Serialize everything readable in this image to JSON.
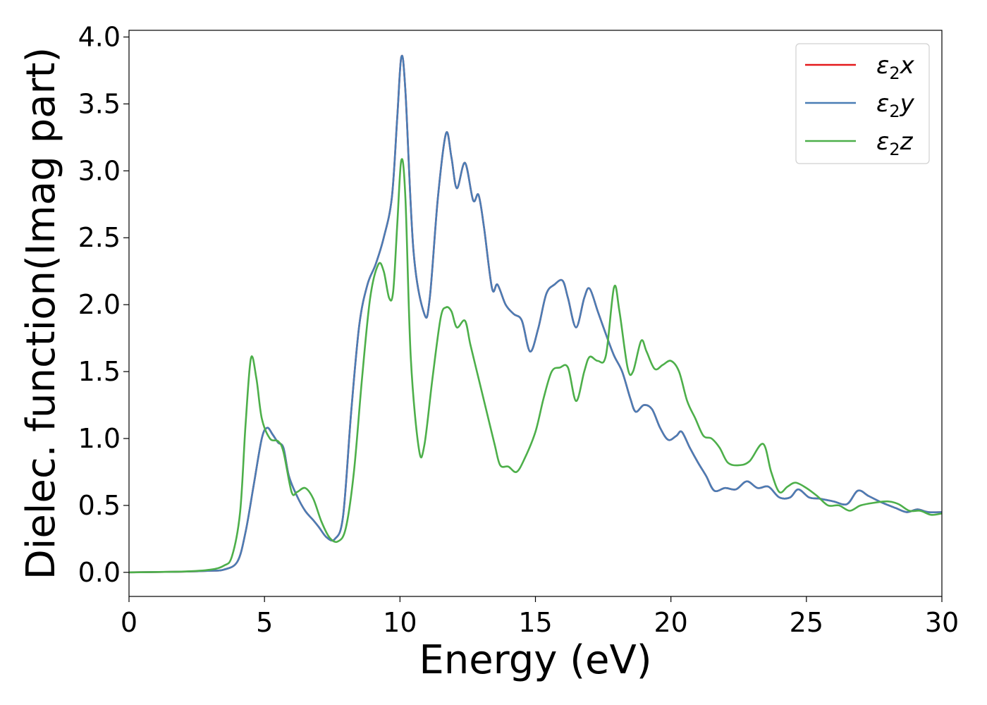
{
  "chart_data": {
    "type": "line",
    "title": "",
    "xlabel": "Energy (eV)",
    "ylabel": "Dielec. function(Imag part)",
    "xlim": [
      0,
      30
    ],
    "ylim": [
      -0.18,
      4.05
    ],
    "xticks": [
      0,
      5,
      10,
      15,
      20,
      25,
      30
    ],
    "xtick_labels": [
      "0",
      "5",
      "10",
      "15",
      "20",
      "25",
      "30"
    ],
    "yticks": [
      0.0,
      0.5,
      1.0,
      1.5,
      2.0,
      2.5,
      3.0,
      3.5,
      4.0
    ],
    "ytick_labels": [
      "0.0",
      "0.5",
      "1.0",
      "1.5",
      "2.0",
      "2.5",
      "3.0",
      "3.5",
      "4.0"
    ],
    "grid": false,
    "legend_position": "top-right",
    "series": [
      {
        "name": "ε2x",
        "legend": {
          "base": "ε",
          "sub": "2",
          "var": "x"
        },
        "color": "#e41a1c",
        "points": [
          [
            0,
            0
          ],
          [
            2,
            0.005
          ],
          [
            3,
            0.012
          ],
          [
            3.5,
            0.02
          ],
          [
            4,
            0.08
          ],
          [
            4.3,
            0.3
          ],
          [
            4.6,
            0.65
          ],
          [
            4.9,
            1.0
          ],
          [
            5.1,
            1.08
          ],
          [
            5.3,
            1.03
          ],
          [
            5.5,
            0.97
          ],
          [
            5.7,
            0.93
          ],
          [
            5.9,
            0.72
          ],
          [
            6.2,
            0.57
          ],
          [
            6.5,
            0.46
          ],
          [
            6.8,
            0.39
          ],
          [
            7.0,
            0.34
          ],
          [
            7.3,
            0.26
          ],
          [
            7.6,
            0.25
          ],
          [
            7.9,
            0.42
          ],
          [
            8.2,
            1.2
          ],
          [
            8.5,
            1.85
          ],
          [
            8.8,
            2.15
          ],
          [
            9.1,
            2.3
          ],
          [
            9.4,
            2.5
          ],
          [
            9.7,
            2.8
          ],
          [
            9.9,
            3.4
          ],
          [
            10.05,
            3.85
          ],
          [
            10.2,
            3.6
          ],
          [
            10.5,
            2.4
          ],
          [
            10.9,
            1.93
          ],
          [
            11.1,
            2.05
          ],
          [
            11.4,
            2.8
          ],
          [
            11.7,
            3.28
          ],
          [
            11.9,
            3.1
          ],
          [
            12.1,
            2.87
          ],
          [
            12.4,
            3.06
          ],
          [
            12.7,
            2.78
          ],
          [
            12.9,
            2.82
          ],
          [
            13.1,
            2.58
          ],
          [
            13.4,
            2.12
          ],
          [
            13.6,
            2.15
          ],
          [
            13.9,
            2.0
          ],
          [
            14.2,
            1.93
          ],
          [
            14.5,
            1.88
          ],
          [
            14.8,
            1.65
          ],
          [
            15.1,
            1.82
          ],
          [
            15.4,
            2.08
          ],
          [
            15.7,
            2.15
          ],
          [
            16.0,
            2.18
          ],
          [
            16.2,
            2.05
          ],
          [
            16.5,
            1.83
          ],
          [
            16.8,
            2.05
          ],
          [
            17.0,
            2.12
          ],
          [
            17.3,
            1.95
          ],
          [
            17.6,
            1.78
          ],
          [
            17.9,
            1.62
          ],
          [
            18.2,
            1.5
          ],
          [
            18.5,
            1.3
          ],
          [
            18.7,
            1.2
          ],
          [
            19.0,
            1.25
          ],
          [
            19.3,
            1.22
          ],
          [
            19.6,
            1.08
          ],
          [
            19.9,
            0.99
          ],
          [
            20.2,
            1.02
          ],
          [
            20.4,
            1.05
          ],
          [
            20.7,
            0.93
          ],
          [
            21.0,
            0.82
          ],
          [
            21.3,
            0.72
          ],
          [
            21.6,
            0.61
          ],
          [
            22.0,
            0.63
          ],
          [
            22.4,
            0.62
          ],
          [
            22.8,
            0.68
          ],
          [
            23.2,
            0.63
          ],
          [
            23.6,
            0.64
          ],
          [
            24.0,
            0.56
          ],
          [
            24.4,
            0.56
          ],
          [
            24.7,
            0.62
          ],
          [
            25.1,
            0.56
          ],
          [
            25.5,
            0.55
          ],
          [
            26.0,
            0.53
          ],
          [
            26.5,
            0.51
          ],
          [
            26.9,
            0.61
          ],
          [
            27.3,
            0.57
          ],
          [
            27.8,
            0.52
          ],
          [
            28.3,
            0.48
          ],
          [
            28.7,
            0.45
          ],
          [
            29.1,
            0.47
          ],
          [
            29.5,
            0.45
          ],
          [
            30,
            0.45
          ]
        ]
      },
      {
        "name": "ε2y",
        "legend": {
          "base": "ε",
          "sub": "2",
          "var": "y"
        },
        "color": "#4a7db5",
        "points": [
          [
            0,
            0
          ],
          [
            2,
            0.005
          ],
          [
            3,
            0.012
          ],
          [
            3.5,
            0.02
          ],
          [
            4,
            0.08
          ],
          [
            4.3,
            0.3
          ],
          [
            4.6,
            0.65
          ],
          [
            4.9,
            1.0
          ],
          [
            5.1,
            1.08
          ],
          [
            5.3,
            1.03
          ],
          [
            5.5,
            0.97
          ],
          [
            5.7,
            0.93
          ],
          [
            5.9,
            0.72
          ],
          [
            6.2,
            0.57
          ],
          [
            6.5,
            0.46
          ],
          [
            6.8,
            0.39
          ],
          [
            7.0,
            0.34
          ],
          [
            7.3,
            0.26
          ],
          [
            7.6,
            0.25
          ],
          [
            7.9,
            0.42
          ],
          [
            8.2,
            1.2
          ],
          [
            8.5,
            1.85
          ],
          [
            8.8,
            2.15
          ],
          [
            9.1,
            2.3
          ],
          [
            9.4,
            2.5
          ],
          [
            9.7,
            2.8
          ],
          [
            9.9,
            3.4
          ],
          [
            10.05,
            3.85
          ],
          [
            10.2,
            3.6
          ],
          [
            10.5,
            2.4
          ],
          [
            10.9,
            1.93
          ],
          [
            11.1,
            2.05
          ],
          [
            11.4,
            2.8
          ],
          [
            11.7,
            3.28
          ],
          [
            11.9,
            3.1
          ],
          [
            12.1,
            2.87
          ],
          [
            12.4,
            3.06
          ],
          [
            12.7,
            2.78
          ],
          [
            12.9,
            2.82
          ],
          [
            13.1,
            2.58
          ],
          [
            13.4,
            2.12
          ],
          [
            13.6,
            2.15
          ],
          [
            13.9,
            2.0
          ],
          [
            14.2,
            1.93
          ],
          [
            14.5,
            1.88
          ],
          [
            14.8,
            1.65
          ],
          [
            15.1,
            1.82
          ],
          [
            15.4,
            2.08
          ],
          [
            15.7,
            2.15
          ],
          [
            16.0,
            2.18
          ],
          [
            16.2,
            2.05
          ],
          [
            16.5,
            1.83
          ],
          [
            16.8,
            2.05
          ],
          [
            17.0,
            2.12
          ],
          [
            17.3,
            1.95
          ],
          [
            17.6,
            1.78
          ],
          [
            17.9,
            1.62
          ],
          [
            18.2,
            1.5
          ],
          [
            18.5,
            1.3
          ],
          [
            18.7,
            1.2
          ],
          [
            19.0,
            1.25
          ],
          [
            19.3,
            1.22
          ],
          [
            19.6,
            1.08
          ],
          [
            19.9,
            0.99
          ],
          [
            20.2,
            1.02
          ],
          [
            20.4,
            1.05
          ],
          [
            20.7,
            0.93
          ],
          [
            21.0,
            0.82
          ],
          [
            21.3,
            0.72
          ],
          [
            21.6,
            0.61
          ],
          [
            22.0,
            0.63
          ],
          [
            22.4,
            0.62
          ],
          [
            22.8,
            0.68
          ],
          [
            23.2,
            0.63
          ],
          [
            23.6,
            0.64
          ],
          [
            24.0,
            0.56
          ],
          [
            24.4,
            0.56
          ],
          [
            24.7,
            0.62
          ],
          [
            25.1,
            0.56
          ],
          [
            25.5,
            0.55
          ],
          [
            26.0,
            0.53
          ],
          [
            26.5,
            0.51
          ],
          [
            26.9,
            0.61
          ],
          [
            27.3,
            0.57
          ],
          [
            27.8,
            0.52
          ],
          [
            28.3,
            0.48
          ],
          [
            28.7,
            0.45
          ],
          [
            29.1,
            0.47
          ],
          [
            29.5,
            0.45
          ],
          [
            30,
            0.45
          ]
        ]
      },
      {
        "name": "ε2z",
        "legend": {
          "base": "ε",
          "sub": "2",
          "var": "z"
        },
        "color": "#4daf4a",
        "points": [
          [
            0,
            0
          ],
          [
            2,
            0.006
          ],
          [
            3,
            0.02
          ],
          [
            3.5,
            0.05
          ],
          [
            3.8,
            0.12
          ],
          [
            4.1,
            0.45
          ],
          [
            4.3,
            1.1
          ],
          [
            4.5,
            1.6
          ],
          [
            4.7,
            1.45
          ],
          [
            4.9,
            1.15
          ],
          [
            5.2,
            1.0
          ],
          [
            5.5,
            0.98
          ],
          [
            5.7,
            0.9
          ],
          [
            6.0,
            0.6
          ],
          [
            6.2,
            0.6
          ],
          [
            6.5,
            0.63
          ],
          [
            6.8,
            0.55
          ],
          [
            7.1,
            0.38
          ],
          [
            7.4,
            0.26
          ],
          [
            7.7,
            0.23
          ],
          [
            8.0,
            0.33
          ],
          [
            8.3,
            0.75
          ],
          [
            8.6,
            1.45
          ],
          [
            8.9,
            2.05
          ],
          [
            9.2,
            2.3
          ],
          [
            9.4,
            2.25
          ],
          [
            9.6,
            2.05
          ],
          [
            9.75,
            2.1
          ],
          [
            9.9,
            2.6
          ],
          [
            10.05,
            3.08
          ],
          [
            10.2,
            2.8
          ],
          [
            10.4,
            1.6
          ],
          [
            10.7,
            0.92
          ],
          [
            10.9,
            0.95
          ],
          [
            11.2,
            1.45
          ],
          [
            11.5,
            1.9
          ],
          [
            11.7,
            1.98
          ],
          [
            11.9,
            1.95
          ],
          [
            12.1,
            1.83
          ],
          [
            12.4,
            1.88
          ],
          [
            12.6,
            1.7
          ],
          [
            12.9,
            1.45
          ],
          [
            13.2,
            1.2
          ],
          [
            13.5,
            0.95
          ],
          [
            13.7,
            0.8
          ],
          [
            14.0,
            0.79
          ],
          [
            14.3,
            0.75
          ],
          [
            14.6,
            0.85
          ],
          [
            15.0,
            1.05
          ],
          [
            15.3,
            1.3
          ],
          [
            15.6,
            1.5
          ],
          [
            15.9,
            1.53
          ],
          [
            16.2,
            1.53
          ],
          [
            16.5,
            1.28
          ],
          [
            16.8,
            1.5
          ],
          [
            17.0,
            1.61
          ],
          [
            17.3,
            1.58
          ],
          [
            17.6,
            1.62
          ],
          [
            17.9,
            2.13
          ],
          [
            18.1,
            1.95
          ],
          [
            18.4,
            1.53
          ],
          [
            18.6,
            1.5
          ],
          [
            18.9,
            1.73
          ],
          [
            19.1,
            1.65
          ],
          [
            19.4,
            1.52
          ],
          [
            19.7,
            1.55
          ],
          [
            20.0,
            1.58
          ],
          [
            20.3,
            1.5
          ],
          [
            20.6,
            1.28
          ],
          [
            20.9,
            1.15
          ],
          [
            21.2,
            1.02
          ],
          [
            21.5,
            1.0
          ],
          [
            21.8,
            0.93
          ],
          [
            22.1,
            0.82
          ],
          [
            22.5,
            0.8
          ],
          [
            22.9,
            0.83
          ],
          [
            23.4,
            0.96
          ],
          [
            23.7,
            0.75
          ],
          [
            24.0,
            0.6
          ],
          [
            24.3,
            0.64
          ],
          [
            24.6,
            0.67
          ],
          [
            25.0,
            0.63
          ],
          [
            25.4,
            0.57
          ],
          [
            25.8,
            0.5
          ],
          [
            26.2,
            0.5
          ],
          [
            26.6,
            0.46
          ],
          [
            27.0,
            0.5
          ],
          [
            27.5,
            0.52
          ],
          [
            28.0,
            0.53
          ],
          [
            28.4,
            0.51
          ],
          [
            28.8,
            0.46
          ],
          [
            29.2,
            0.46
          ],
          [
            29.6,
            0.43
          ],
          [
            30,
            0.44
          ]
        ]
      }
    ]
  }
}
